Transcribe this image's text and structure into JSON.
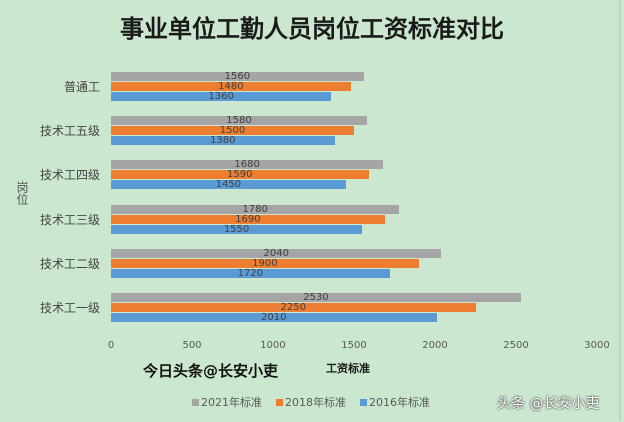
{
  "chart_data": {
    "type": "bar",
    "orientation": "horizontal",
    "title": "事业单位工勤人员岗位工资标准对比",
    "xlabel": "工资标准",
    "ylabel": "岗位",
    "categories": [
      "普通工",
      "技术工五级",
      "技术工四级",
      "技术工三级",
      "技术工二级",
      "技术工一级"
    ],
    "series": [
      {
        "name": "2021年标准",
        "color": "#a5a5a5",
        "values": [
          1560,
          1580,
          1680,
          1780,
          2040,
          2530
        ]
      },
      {
        "name": "2018年标准",
        "color": "#ed7d31",
        "values": [
          1480,
          1500,
          1590,
          1690,
          1900,
          2250
        ]
      },
      {
        "name": "2016年标准",
        "color": "#5b9bd5",
        "values": [
          1360,
          1380,
          1450,
          1550,
          1720,
          2010
        ]
      }
    ],
    "xlim": [
      0,
      3000
    ],
    "xticks": [
      "0",
      "500",
      "1000",
      "1500",
      "2000",
      "2500",
      "3000"
    ],
    "grid": false,
    "legend_position": "bottom"
  },
  "watermarks": {
    "center": "今日头条@长安小吏",
    "corner": "头条 @长安小吏"
  }
}
